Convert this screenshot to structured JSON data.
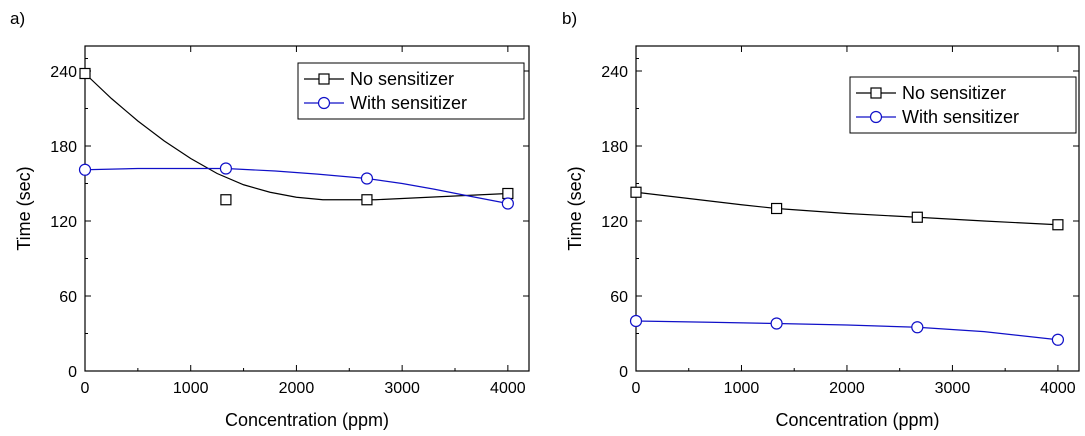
{
  "chart_data": [
    {
      "type": "line",
      "panel_label": "a)",
      "xlabel": "Concentration (ppm)",
      "ylabel": "Time (sec)",
      "xlim": [
        0,
        4200
      ],
      "ylim": [
        0,
        260
      ],
      "xticks": [
        0,
        1000,
        2000,
        3000,
        4000
      ],
      "yticks": [
        0,
        60,
        120,
        180,
        240
      ],
      "legend_position": "top-right",
      "series": [
        {
          "name": "No sensitizer",
          "color": "#000000",
          "marker": "square",
          "x": [
            0,
            1333,
            2667,
            4000
          ],
          "y": [
            238,
            137,
            137,
            142
          ],
          "fit": [
            [
              0,
              238
            ],
            [
              250,
              218
            ],
            [
              500,
              200
            ],
            [
              750,
              184
            ],
            [
              1000,
              170
            ],
            [
              1250,
              158
            ],
            [
              1500,
              149
            ],
            [
              1750,
              143
            ],
            [
              2000,
              139
            ],
            [
              2250,
              137
            ],
            [
              2500,
              137
            ],
            [
              2750,
              137
            ],
            [
              3000,
              138
            ],
            [
              3250,
              139
            ],
            [
              3500,
              140
            ],
            [
              3750,
              141
            ],
            [
              4000,
              142
            ]
          ]
        },
        {
          "name": "With sensitizer",
          "color": "#1010c8",
          "marker": "circle",
          "x": [
            0,
            1333,
            2667,
            4000
          ],
          "y": [
            161,
            162,
            154,
            134
          ],
          "fit": [
            [
              0,
              161
            ],
            [
              500,
              162
            ],
            [
              1000,
              162
            ],
            [
              1333,
              162
            ],
            [
              1800,
              160
            ],
            [
              2200,
              157.5
            ],
            [
              2667,
              154
            ],
            [
              3000,
              150
            ],
            [
              3300,
              145.5
            ],
            [
              3600,
              140.5
            ],
            [
              4000,
              134
            ]
          ]
        }
      ]
    },
    {
      "type": "line",
      "panel_label": "b)",
      "xlabel": "Concentration (ppm)",
      "ylabel": "Time (sec)",
      "xlim": [
        0,
        4200
      ],
      "ylim": [
        0,
        260
      ],
      "xticks": [
        0,
        1000,
        2000,
        3000,
        4000
      ],
      "yticks": [
        0,
        60,
        120,
        180,
        240
      ],
      "legend_position": "top-right",
      "series": [
        {
          "name": "No sensitizer",
          "color": "#000000",
          "marker": "square",
          "x": [
            0,
            1333,
            2667,
            4000
          ],
          "y": [
            143,
            130,
            123,
            117
          ],
          "fit": [
            [
              0,
              143
            ],
            [
              500,
              138
            ],
            [
              1000,
              133
            ],
            [
              1333,
              130
            ],
            [
              2000,
              126
            ],
            [
              2667,
              123
            ],
            [
              3300,
              120
            ],
            [
              4000,
              117
            ]
          ]
        },
        {
          "name": "With sensitizer",
          "color": "#1010c8",
          "marker": "circle",
          "x": [
            0,
            1333,
            2667,
            4000
          ],
          "y": [
            40,
            38,
            35,
            25
          ],
          "fit": [
            [
              0,
              40
            ],
            [
              700,
              39
            ],
            [
              1333,
              38
            ],
            [
              2000,
              36.8
            ],
            [
              2667,
              35
            ],
            [
              3300,
              31.5
            ],
            [
              4000,
              25
            ]
          ]
        }
      ]
    }
  ]
}
